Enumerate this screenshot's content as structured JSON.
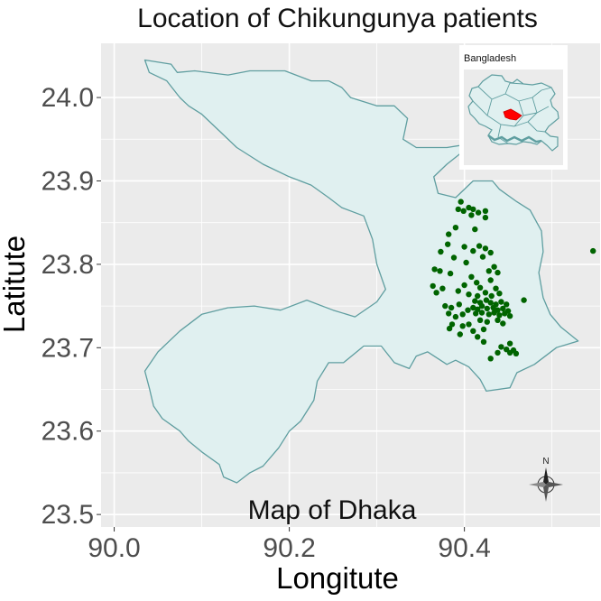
{
  "chart_data": {
    "type": "scatter",
    "title": "Location of Chikungunya patients",
    "xlabel": "Longitute",
    "ylabel": "Latitute",
    "xlim": [
      89.985,
      90.555
    ],
    "ylim": [
      23.485,
      24.065
    ],
    "x_ticks": [
      "90.0",
      "90.2",
      "90.4"
    ],
    "x_tick_values": [
      90.0,
      90.2,
      90.4
    ],
    "y_ticks": [
      "23.5",
      "23.6",
      "23.7",
      "23.8",
      "23.9",
      "24.0"
    ],
    "y_tick_values": [
      23.5,
      23.6,
      23.7,
      23.8,
      23.9,
      24.0
    ],
    "grid": true,
    "annotation": "Map of Dhaka",
    "inset_label": "Bangladesh",
    "north_arrow_label": "N",
    "colors": {
      "panel": "#ebebeb",
      "grid": "#ffffff",
      "region_fill": "#e0f0f0",
      "region_border": "#5f9ea0",
      "points": "#006400",
      "highlight": "#ff0000"
    },
    "region_outline": [
      [
        90.035,
        24.045
      ],
      [
        90.065,
        24.04
      ],
      [
        90.072,
        24.03
      ],
      [
        90.092,
        24.032
      ],
      [
        90.13,
        24.027
      ],
      [
        90.155,
        24.032
      ],
      [
        90.195,
        24.032
      ],
      [
        90.225,
        24.02
      ],
      [
        90.245,
        24.02
      ],
      [
        90.26,
        24.012
      ],
      [
        90.27,
        24.0
      ],
      [
        90.3,
        23.99
      ],
      [
        90.32,
        23.99
      ],
      [
        90.335,
        23.975
      ],
      [
        90.33,
        23.95
      ],
      [
        90.345,
        23.94
      ],
      [
        90.38,
        23.94
      ],
      [
        90.41,
        23.945
      ],
      [
        90.38,
        23.92
      ],
      [
        90.365,
        23.905
      ],
      [
        90.37,
        23.885
      ],
      [
        90.39,
        23.88
      ],
      [
        90.41,
        23.9
      ],
      [
        90.432,
        23.9
      ],
      [
        90.44,
        23.89
      ],
      [
        90.46,
        23.875
      ],
      [
        90.475,
        23.865
      ],
      [
        90.488,
        23.84
      ],
      [
        90.49,
        23.815
      ],
      [
        90.485,
        23.79
      ],
      [
        90.49,
        23.76
      ],
      [
        90.498,
        23.74
      ],
      [
        90.51,
        23.725
      ],
      [
        90.53,
        23.708
      ],
      [
        90.505,
        23.7
      ],
      [
        90.48,
        23.68
      ],
      [
        90.46,
        23.67
      ],
      [
        90.452,
        23.652
      ],
      [
        90.425,
        23.648
      ],
      [
        90.418,
        23.662
      ],
      [
        90.405,
        23.677
      ],
      [
        90.39,
        23.685
      ],
      [
        90.38,
        23.68
      ],
      [
        90.358,
        23.695
      ],
      [
        90.345,
        23.69
      ],
      [
        90.337,
        23.675
      ],
      [
        90.32,
        23.682
      ],
      [
        90.305,
        23.702
      ],
      [
        90.285,
        23.702
      ],
      [
        90.262,
        23.682
      ],
      [
        90.245,
        23.682
      ],
      [
        90.232,
        23.66
      ],
      [
        90.228,
        23.637
      ],
      [
        90.213,
        23.612
      ],
      [
        90.2,
        23.6
      ],
      [
        90.188,
        23.58
      ],
      [
        90.17,
        23.558
      ],
      [
        90.155,
        23.55
      ],
      [
        90.14,
        23.538
      ],
      [
        90.125,
        23.545
      ],
      [
        90.12,
        23.56
      ],
      [
        90.1,
        23.575
      ],
      [
        90.085,
        23.588
      ],
      [
        90.075,
        23.6
      ],
      [
        90.055,
        23.615
      ],
      [
        90.045,
        23.63
      ],
      [
        90.04,
        23.652
      ],
      [
        90.035,
        23.672
      ],
      [
        90.05,
        23.695
      ],
      [
        90.075,
        23.72
      ],
      [
        90.1,
        23.74
      ],
      [
        90.13,
        23.748
      ],
      [
        90.16,
        23.75
      ],
      [
        90.19,
        23.745
      ],
      [
        90.22,
        23.757
      ],
      [
        90.25,
        23.745
      ],
      [
        90.275,
        23.737
      ],
      [
        90.3,
        23.755
      ],
      [
        90.31,
        23.77
      ],
      [
        90.3,
        23.8
      ],
      [
        90.295,
        23.83
      ],
      [
        90.285,
        23.858
      ],
      [
        90.26,
        23.868
      ],
      [
        90.245,
        23.88
      ],
      [
        90.225,
        23.895
      ],
      [
        90.2,
        23.905
      ],
      [
        90.17,
        23.92
      ],
      [
        90.14,
        23.94
      ],
      [
        90.12,
        23.96
      ],
      [
        90.1,
        23.98
      ],
      [
        90.085,
        23.99
      ],
      [
        90.075,
        24.0
      ],
      [
        90.06,
        24.02
      ],
      [
        90.04,
        24.03
      ]
    ],
    "points": [
      {
        "x": 90.396,
        "y": 23.875
      },
      {
        "x": 90.405,
        "y": 23.868
      },
      {
        "x": 90.41,
        "y": 23.866
      },
      {
        "x": 90.399,
        "y": 23.864
      },
      {
        "x": 90.393,
        "y": 23.866
      },
      {
        "x": 90.416,
        "y": 23.862
      },
      {
        "x": 90.424,
        "y": 23.864
      },
      {
        "x": 90.424,
        "y": 23.856
      },
      {
        "x": 90.408,
        "y": 23.859
      },
      {
        "x": 90.39,
        "y": 23.844
      },
      {
        "x": 90.412,
        "y": 23.842
      },
      {
        "x": 90.382,
        "y": 23.836
      },
      {
        "x": 90.381,
        "y": 23.824
      },
      {
        "x": 90.4,
        "y": 23.821
      },
      {
        "x": 90.41,
        "y": 23.816
      },
      {
        "x": 90.417,
        "y": 23.822
      },
      {
        "x": 90.424,
        "y": 23.819
      },
      {
        "x": 90.373,
        "y": 23.815
      },
      {
        "x": 90.388,
        "y": 23.808
      },
      {
        "x": 90.402,
        "y": 23.802
      },
      {
        "x": 90.421,
        "y": 23.809
      },
      {
        "x": 90.43,
        "y": 23.814
      },
      {
        "x": 90.366,
        "y": 23.794
      },
      {
        "x": 90.372,
        "y": 23.792
      },
      {
        "x": 90.384,
        "y": 23.789
      },
      {
        "x": 90.428,
        "y": 23.792
      },
      {
        "x": 90.434,
        "y": 23.797
      },
      {
        "x": 90.438,
        "y": 23.79
      },
      {
        "x": 90.408,
        "y": 23.785
      },
      {
        "x": 90.414,
        "y": 23.778
      },
      {
        "x": 90.4,
        "y": 23.775
      },
      {
        "x": 90.43,
        "y": 23.781
      },
      {
        "x": 90.375,
        "y": 23.771
      },
      {
        "x": 90.393,
        "y": 23.768
      },
      {
        "x": 90.364,
        "y": 23.774
      },
      {
        "x": 90.418,
        "y": 23.772
      },
      {
        "x": 90.436,
        "y": 23.771
      },
      {
        "x": 90.405,
        "y": 23.764
      },
      {
        "x": 90.415,
        "y": 23.762
      },
      {
        "x": 90.424,
        "y": 23.766
      },
      {
        "x": 90.431,
        "y": 23.762
      },
      {
        "x": 90.44,
        "y": 23.765
      },
      {
        "x": 90.368,
        "y": 23.766
      },
      {
        "x": 90.412,
        "y": 23.756
      },
      {
        "x": 90.418,
        "y": 23.754
      },
      {
        "x": 90.425,
        "y": 23.757
      },
      {
        "x": 90.43,
        "y": 23.754
      },
      {
        "x": 90.436,
        "y": 23.752
      },
      {
        "x": 90.442,
        "y": 23.755
      },
      {
        "x": 90.448,
        "y": 23.752
      },
      {
        "x": 90.41,
        "y": 23.748
      },
      {
        "x": 90.415,
        "y": 23.746
      },
      {
        "x": 90.42,
        "y": 23.75
      },
      {
        "x": 90.426,
        "y": 23.747
      },
      {
        "x": 90.433,
        "y": 23.748
      },
      {
        "x": 90.438,
        "y": 23.745
      },
      {
        "x": 90.444,
        "y": 23.747
      },
      {
        "x": 90.45,
        "y": 23.744
      },
      {
        "x": 90.413,
        "y": 23.741
      },
      {
        "x": 90.42,
        "y": 23.742
      },
      {
        "x": 90.428,
        "y": 23.74
      },
      {
        "x": 90.434,
        "y": 23.742
      },
      {
        "x": 90.44,
        "y": 23.739
      },
      {
        "x": 90.446,
        "y": 23.741
      },
      {
        "x": 90.452,
        "y": 23.738
      },
      {
        "x": 90.378,
        "y": 23.75
      },
      {
        "x": 90.385,
        "y": 23.748
      },
      {
        "x": 90.394,
        "y": 23.752
      },
      {
        "x": 90.382,
        "y": 23.741
      },
      {
        "x": 90.39,
        "y": 23.737
      },
      {
        "x": 90.398,
        "y": 23.74
      },
      {
        "x": 90.404,
        "y": 23.745
      },
      {
        "x": 90.418,
        "y": 23.733
      },
      {
        "x": 90.426,
        "y": 23.731
      },
      {
        "x": 90.438,
        "y": 23.733
      },
      {
        "x": 90.444,
        "y": 23.729
      },
      {
        "x": 90.386,
        "y": 23.728
      },
      {
        "x": 90.398,
        "y": 23.726
      },
      {
        "x": 90.405,
        "y": 23.728
      },
      {
        "x": 90.41,
        "y": 23.72
      },
      {
        "x": 90.422,
        "y": 23.722
      },
      {
        "x": 90.415,
        "y": 23.713
      },
      {
        "x": 90.422,
        "y": 23.707
      },
      {
        "x": 90.395,
        "y": 23.716
      },
      {
        "x": 90.383,
        "y": 23.723
      },
      {
        "x": 90.468,
        "y": 23.757
      },
      {
        "x": 90.442,
        "y": 23.701
      },
      {
        "x": 90.448,
        "y": 23.698
      },
      {
        "x": 90.452,
        "y": 23.705
      },
      {
        "x": 90.456,
        "y": 23.697
      },
      {
        "x": 90.452,
        "y": 23.694
      },
      {
        "x": 90.438,
        "y": 23.694
      },
      {
        "x": 90.459,
        "y": 23.693
      },
      {
        "x": 90.43,
        "y": 23.687
      },
      {
        "x": 90.547,
        "y": 23.816
      }
    ]
  }
}
